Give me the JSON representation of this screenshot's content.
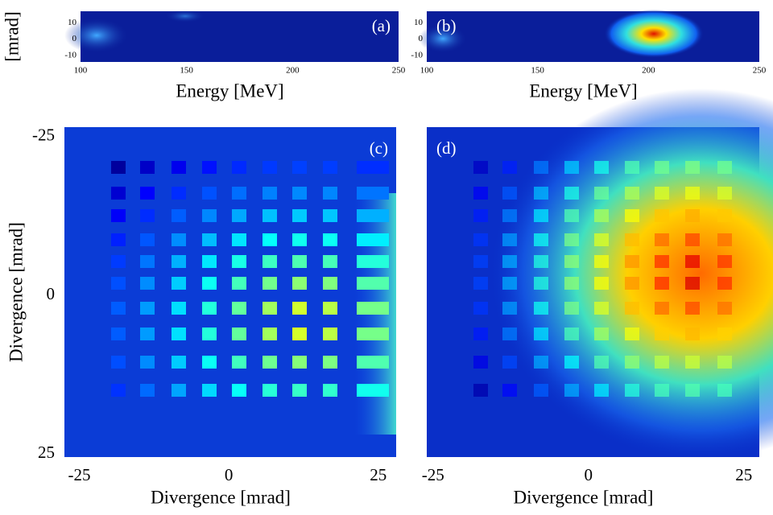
{
  "chart_data": [
    {
      "type": "heatmap",
      "panel_label": "(a)",
      "xlabel": "Energy [MeV]",
      "ylabel": "[mrad]",
      "xlim": [
        100,
        250
      ],
      "ylim": [
        -14,
        17
      ],
      "xticks": [
        100,
        150,
        200,
        250
      ],
      "yticks": [
        10,
        0,
        -10
      ]
    },
    {
      "type": "heatmap",
      "panel_label": "(b)",
      "xlabel": "Energy [MeV]",
      "xlim": [
        100,
        250
      ],
      "ylim": [
        -14,
        17
      ],
      "xticks": [
        100,
        150,
        200,
        250
      ],
      "yticks": [
        10,
        0,
        -10
      ]
    },
    {
      "type": "heatmap",
      "panel_label": "(c)",
      "xlabel": "Divergence [mrad]",
      "ylabel": "Divergence [mrad]",
      "xlim": [
        -27.5,
        28
      ],
      "ylim": [
        -26.5,
        25.5
      ],
      "yaxis_inverted": true,
      "xticks": [
        -25,
        0,
        25
      ],
      "yticks": [
        -25,
        0,
        25
      ]
    },
    {
      "type": "heatmap",
      "panel_label": "(d)",
      "xlabel": "Divergence [mrad]",
      "xlim": [
        -26,
        27.5
      ],
      "xticks": [
        -25,
        0,
        25
      ]
    }
  ]
}
